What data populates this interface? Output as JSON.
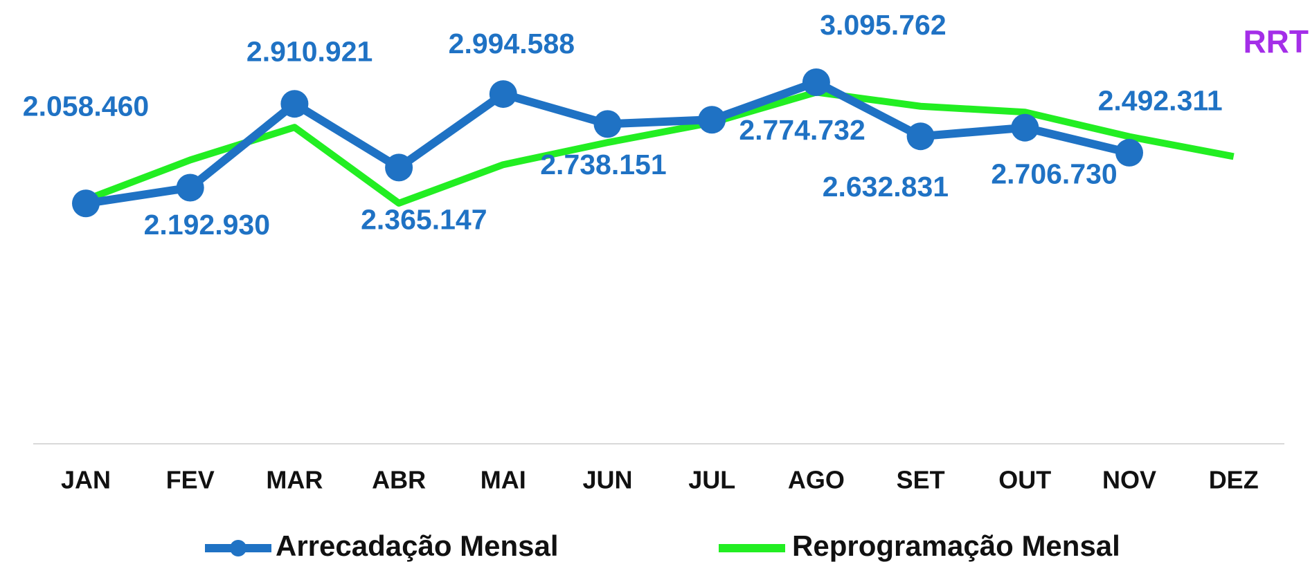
{
  "chart_data": {
    "type": "line",
    "title": "RRT",
    "categories": [
      "JAN",
      "FEV",
      "MAR",
      "ABR",
      "MAI",
      "JUN",
      "JUL",
      "AGO",
      "SET",
      "OUT",
      "NOV",
      "DEZ"
    ],
    "series": [
      {
        "name": "Arrecadação Mensal",
        "color": "#1f72c4",
        "values": [
          2058460,
          2192930,
          2910921,
          2365147,
          2994588,
          2738151,
          2774732,
          3095762,
          2632831,
          2706730,
          2492311,
          null
        ],
        "value_labels": [
          "2.058.460",
          "2.192.930",
          "2.910.921",
          "2.365.147",
          "2.994.588",
          "2.738.151",
          "2.774.732",
          "3.095.762",
          "2.632.831",
          "2.706.730",
          "2.492.311",
          null
        ]
      },
      {
        "name": "Reprogramação Mensal",
        "color": "#22ee22",
        "values": [
          2090000,
          2430000,
          2710000,
          2060000,
          2390000,
          2580000,
          2750000,
          3010000,
          2890000,
          2840000,
          2630000,
          2460000
        ]
      }
    ],
    "ylim": [
      0,
      3800000
    ],
    "title_color": "#a42ee8"
  }
}
